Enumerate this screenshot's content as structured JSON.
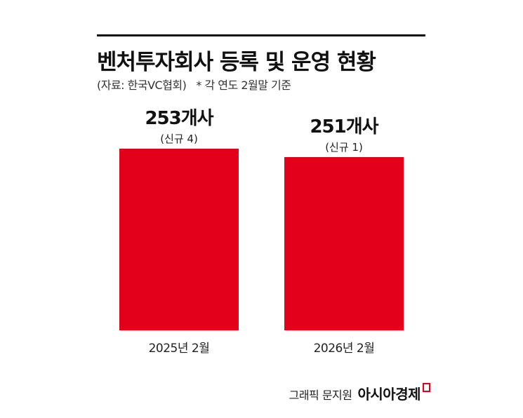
{
  "header": {
    "title": "벤처투자회사 등록 및 운영 현황",
    "source": "(자료: 한국VC협회)",
    "note": "* 각 연도 2월말 기준"
  },
  "chart_data": {
    "type": "bar",
    "categories": [
      "2025년 2월",
      "2026년 2월"
    ],
    "values": [
      253,
      251
    ],
    "value_labels": [
      "253개사",
      "251개사"
    ],
    "sub_labels": [
      "(신규 4)",
      "(신규 1)"
    ],
    "new_registrations": [
      4,
      1
    ],
    "ylim": [
      0,
      300
    ],
    "grid": false,
    "legend": "none",
    "bar_color": "#e2001a"
  },
  "footer": {
    "author": "그래픽 문지원",
    "brand": "아시아경제"
  },
  "colors": {
    "accent": "#e2001a",
    "text": "#111111"
  }
}
